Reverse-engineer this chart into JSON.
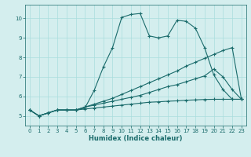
{
  "xlabel": "Humidex (Indice chaleur)",
  "bg_color": "#d4eeee",
  "line_color": "#1a6b6b",
  "grid_color": "#aadddd",
  "xlim": [
    -0.5,
    23.5
  ],
  "ylim": [
    4.5,
    10.7
  ],
  "xticks": [
    0,
    1,
    2,
    3,
    4,
    5,
    6,
    7,
    8,
    9,
    10,
    11,
    12,
    13,
    14,
    15,
    16,
    17,
    18,
    19,
    20,
    21,
    22,
    23
  ],
  "yticks": [
    5,
    6,
    7,
    8,
    9,
    10
  ],
  "line3_x": [
    0,
    1,
    2,
    3,
    4,
    5,
    6,
    7,
    8,
    9,
    10,
    11,
    12,
    13,
    14,
    15,
    16,
    17,
    18,
    19,
    20,
    21,
    22,
    23
  ],
  "line3_y": [
    5.3,
    5.0,
    5.15,
    5.3,
    5.3,
    5.3,
    5.4,
    6.3,
    7.5,
    8.5,
    10.05,
    10.2,
    10.25,
    9.1,
    9.0,
    9.1,
    9.9,
    9.85,
    9.5,
    8.5,
    7.1,
    6.35,
    5.85,
    5.85
  ],
  "line2_x": [
    0,
    1,
    2,
    3,
    4,
    5,
    6,
    7,
    8,
    9,
    10,
    11,
    12,
    13,
    14,
    15,
    16,
    17,
    18,
    19,
    20,
    21,
    22,
    23
  ],
  "line2_y": [
    5.3,
    5.0,
    5.15,
    5.3,
    5.3,
    5.3,
    5.45,
    5.6,
    5.75,
    5.9,
    6.1,
    6.3,
    6.5,
    6.7,
    6.9,
    7.1,
    7.3,
    7.55,
    7.75,
    7.95,
    8.15,
    8.35,
    8.5,
    5.85
  ],
  "line4_x": [
    0,
    1,
    2,
    3,
    4,
    5,
    6,
    7,
    8,
    9,
    10,
    11,
    12,
    13,
    14,
    15,
    16,
    17,
    18,
    19,
    20,
    21,
    22,
    23
  ],
  "line4_y": [
    5.3,
    5.0,
    5.15,
    5.3,
    5.3,
    5.3,
    5.45,
    5.55,
    5.65,
    5.75,
    5.85,
    5.95,
    6.05,
    6.2,
    6.35,
    6.5,
    6.6,
    6.75,
    6.9,
    7.05,
    7.4,
    7.0,
    6.35,
    5.85
  ],
  "line1_x": [
    0,
    1,
    2,
    3,
    4,
    5,
    6,
    7,
    8,
    9,
    10,
    11,
    12,
    13,
    14,
    15,
    16,
    17,
    18,
    19,
    20,
    21,
    22,
    23
  ],
  "line1_y": [
    5.3,
    5.0,
    5.15,
    5.3,
    5.3,
    5.3,
    5.35,
    5.4,
    5.45,
    5.5,
    5.55,
    5.6,
    5.65,
    5.7,
    5.72,
    5.75,
    5.77,
    5.8,
    5.82,
    5.84,
    5.85,
    5.85,
    5.85,
    5.85
  ]
}
